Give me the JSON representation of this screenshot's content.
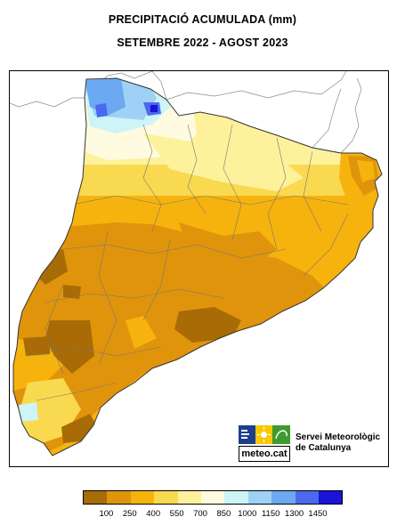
{
  "title_line1": "PRECIPITACIÓ ACUMULADA (mm)",
  "title_line2": "SETEMBRE 2022 - AGOST 2023",
  "legend": {
    "breaks": [
      "100",
      "250",
      "400",
      "550",
      "700",
      "850",
      "1000",
      "1150",
      "1300",
      "1450"
    ],
    "colors": [
      "#a86b06",
      "#e0940c",
      "#f6b30e",
      "#f9d950",
      "#fdf19b",
      "#fffbe0",
      "#cdf4f7",
      "#9ed1f5",
      "#6ca9f2",
      "#4a69ee",
      "#1a13d8"
    ]
  },
  "logo": {
    "text": "meteo.cat",
    "tile_colors": [
      "#1b3f8d",
      "#f6c900",
      "#3e9b2e"
    ]
  },
  "organization": {
    "line1": "Servei Meteorològic",
    "line2": "de Catalunya"
  },
  "map": {
    "background": "#ffffff",
    "border_color": "#8a8a8a"
  }
}
